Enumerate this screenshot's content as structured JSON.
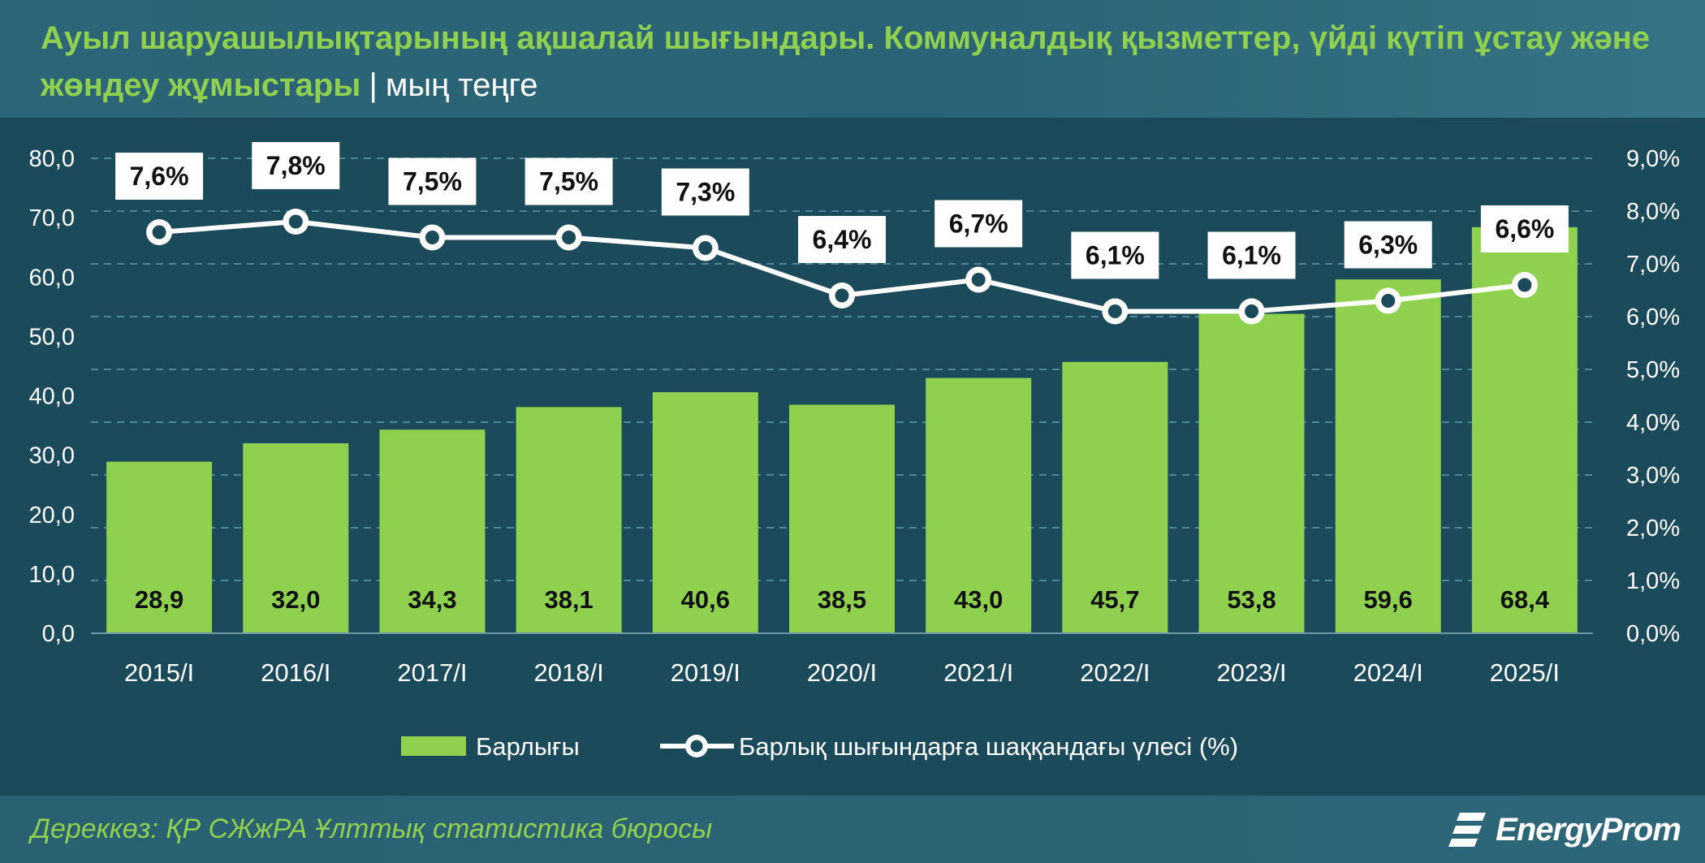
{
  "header": {
    "title": "Ауыл шаруашылықтарының ақшалай шығындары. Коммуналдық қызметтер, үйді күтіп ұстау және жөндеу жұмыстары",
    "separator": "|",
    "unit": "мың теңге"
  },
  "footer": {
    "source": "Дереккөз: ҚР СЖжРА Ұлттық статистика бюросы",
    "brand": "EnergyProm"
  },
  "colors": {
    "bar": "#8fd14f",
    "line": "#ffffff",
    "title_accent": "#8fd14f",
    "background": "#1b4a5b"
  },
  "chart_data": {
    "type": "bar+line",
    "title": "Ауыл шаруашылықтарының ақшалай шығындары. Коммуналдық қызметтер, үйді күтіп ұстау және жөндеу жұмыстары",
    "categories": [
      "2015/I",
      "2016/I",
      "2017/I",
      "2018/I",
      "2019/I",
      "2020/I",
      "2021/I",
      "2022/I",
      "2023/I",
      "2024/I",
      "2025/I"
    ],
    "series": [
      {
        "name": "Барлығы",
        "type": "bar",
        "axis": "left",
        "values": [
          28.9,
          32.0,
          34.3,
          38.1,
          40.6,
          38.5,
          43.0,
          45.7,
          53.8,
          59.6,
          68.4
        ],
        "labels": [
          "28,9",
          "32,0",
          "34,3",
          "38,1",
          "40,6",
          "38,5",
          "43,0",
          "45,7",
          "53,8",
          "59,6",
          "68,4"
        ]
      },
      {
        "name": "Барлық шығындарға шаққандағы үлесі (%)",
        "type": "line",
        "axis": "right",
        "values": [
          7.6,
          7.8,
          7.5,
          7.5,
          7.3,
          6.4,
          6.7,
          6.1,
          6.1,
          6.3,
          6.6
        ],
        "labels": [
          "7,6%",
          "7,8%",
          "7,5%",
          "7,5%",
          "7,3%",
          "6,4%",
          "6,7%",
          "6,1%",
          "6,1%",
          "6,3%",
          "6,6%"
        ]
      }
    ],
    "y_left": {
      "min": 0,
      "max": 80,
      "ticks": [
        "0,0",
        "10,0",
        "20,0",
        "30,0",
        "40,0",
        "50,0",
        "60,0",
        "70,0",
        "80,0"
      ]
    },
    "y_right": {
      "min": 0,
      "max": 9,
      "ticks": [
        "0,0%",
        "1,0%",
        "2,0%",
        "3,0%",
        "4,0%",
        "5,0%",
        "6,0%",
        "7,0%",
        "8,0%",
        "9,0%"
      ]
    },
    "grid": true,
    "legend_position": "bottom-center"
  }
}
